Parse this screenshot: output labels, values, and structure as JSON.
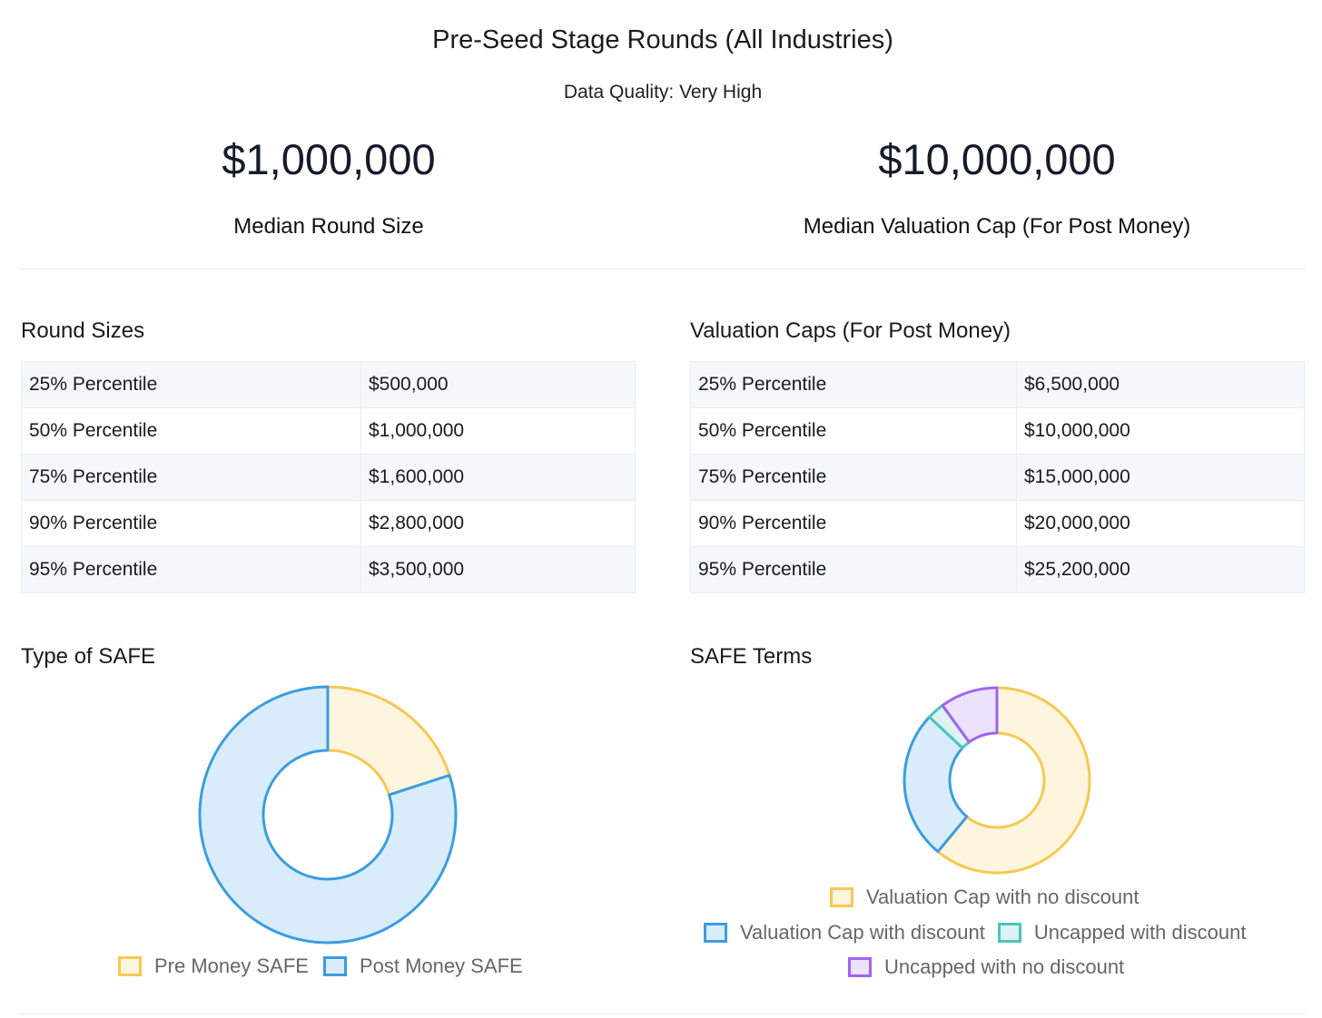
{
  "title": "Pre-Seed Stage Rounds (All Industries)",
  "subtitle": "Data Quality: Very High",
  "summary": {
    "round_size_value": "$1,000,000",
    "round_size_label": "Median Round Size",
    "valuation_cap_value": "$10,000,000",
    "valuation_cap_label": "Median Valuation Cap (For Post Money)"
  },
  "round_sizes": {
    "title": "Round Sizes",
    "rows": [
      {
        "label": "25% Percentile",
        "value": "$500,000"
      },
      {
        "label": "50% Percentile",
        "value": "$1,000,000"
      },
      {
        "label": "75% Percentile",
        "value": "$1,600,000"
      },
      {
        "label": "90% Percentile",
        "value": "$2,800,000"
      },
      {
        "label": "95% Percentile",
        "value": "$3,500,000"
      }
    ]
  },
  "valuation_caps": {
    "title": "Valuation Caps (For Post Money)",
    "rows": [
      {
        "label": "25% Percentile",
        "value": "$6,500,000"
      },
      {
        "label": "50% Percentile",
        "value": "$10,000,000"
      },
      {
        "label": "75% Percentile",
        "value": "$15,000,000"
      },
      {
        "label": "90% Percentile",
        "value": "$20,000,000"
      },
      {
        "label": "95% Percentile",
        "value": "$25,200,000"
      }
    ]
  },
  "chart_data": [
    {
      "type": "pie",
      "style": "doughnut",
      "title": "Type of SAFE",
      "legend_position": "bottom",
      "series": [
        {
          "name": "Pre Money SAFE",
          "value": 20,
          "stroke": "#f7c852",
          "fill": "#fdf5dd"
        },
        {
          "name": "Post Money SAFE",
          "value": 80,
          "stroke": "#3b9de0",
          "fill": "#d9ecf9"
        }
      ]
    },
    {
      "type": "pie",
      "style": "doughnut",
      "title": "SAFE Terms",
      "legend_position": "bottom",
      "series": [
        {
          "name": "Valuation Cap with no discount",
          "value": 61,
          "stroke": "#f7c852",
          "fill": "#fdf5dd"
        },
        {
          "name": "Valuation Cap with discount",
          "value": 26,
          "stroke": "#3b9de0",
          "fill": "#d9ecf9"
        },
        {
          "name": "Uncapped with discount",
          "value": 3,
          "stroke": "#4cc3bd",
          "fill": "#dcf3f1"
        },
        {
          "name": "Uncapped with no discount",
          "value": 10,
          "stroke": "#a064f0",
          "fill": "#ece2fc"
        }
      ]
    }
  ]
}
